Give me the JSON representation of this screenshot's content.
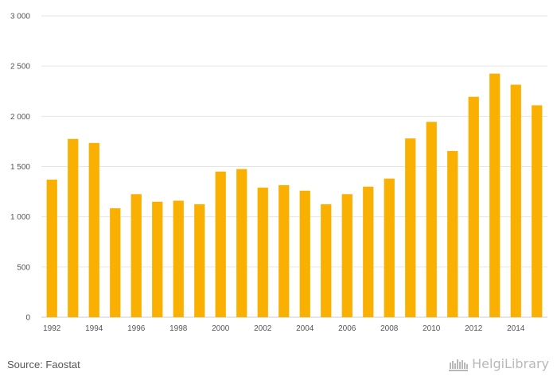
{
  "chart_data": {
    "type": "bar",
    "x": [
      1992,
      1993,
      1994,
      1995,
      1996,
      1997,
      1998,
      1999,
      2000,
      2001,
      2002,
      2003,
      2004,
      2005,
      2006,
      2007,
      2008,
      2009,
      2010,
      2011,
      2012,
      2013,
      2014,
      2015
    ],
    "values": [
      1370,
      1775,
      1735,
      1085,
      1225,
      1150,
      1160,
      1125,
      1450,
      1475,
      1290,
      1315,
      1260,
      1125,
      1225,
      1300,
      1380,
      1780,
      1945,
      1655,
      2195,
      2425,
      2315,
      2110
    ],
    "x_tick_labels": [
      "1992",
      "1994",
      "1996",
      "1998",
      "2000",
      "2002",
      "2004",
      "2006",
      "2008",
      "2010",
      "2012",
      "2014"
    ],
    "y_tick_labels": [
      "0",
      "500",
      "1 000",
      "1 500",
      "2 000",
      "2 500",
      "3 000"
    ],
    "y_ticks": [
      0,
      500,
      1000,
      1500,
      2000,
      2500,
      3000
    ],
    "ylim": [
      0,
      3000
    ],
    "grid": true,
    "title": "",
    "xlabel": "",
    "ylabel": "",
    "bar_color": "#f9b000"
  },
  "footer": {
    "source": "Source: Faostat",
    "brand_name": "HelgiLibrary"
  }
}
